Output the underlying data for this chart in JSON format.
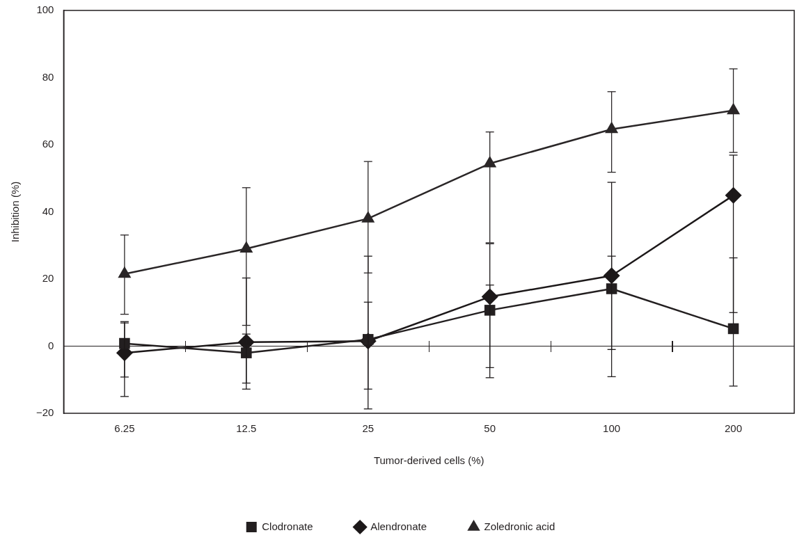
{
  "chart_data": {
    "type": "line",
    "xlabel": "Tumor-derived cells (%)",
    "ylabel": "Inhibition (%)",
    "categories": [
      "6.25",
      "12.5",
      "25",
      "50",
      "100",
      "200"
    ],
    "ylim": [
      -20,
      100
    ],
    "yticks": [
      {
        "value": -20,
        "label": "−20"
      },
      0,
      20,
      40,
      60,
      80,
      100
    ],
    "grid": false,
    "legend": "bottom",
    "line_style": "solid",
    "ref_lines": [
      {
        "axis": "y",
        "value": 0,
        "color": "#231f20"
      }
    ],
    "series": [
      {
        "name": "Clodronate",
        "color": "#231f20",
        "marker": "square",
        "values": [
          0.8,
          -2,
          2,
          10.7,
          17.1,
          5.2
        ],
        "errors": [
          [
            -9.2,
            6.9
          ],
          [
            -11,
            3.6
          ],
          [
            -12.8,
            13.1
          ],
          [
            -6.4,
            18.2
          ],
          [
            -9.1,
            26.8
          ],
          [
            -11.9,
            26.3
          ]
        ]
      },
      {
        "name": "Alendronate",
        "color": "#1c1819",
        "marker": "diamond",
        "values": [
          -2,
          1.2,
          1.5,
          14.7,
          21,
          44.9
        ],
        "errors": [
          [
            -15,
            7.3
          ],
          [
            -12.8,
            20.3
          ],
          [
            -18.7,
            26.8
          ],
          [
            -9.4,
            30.5
          ],
          [
            -1,
            48.8
          ],
          [
            10,
            56.9
          ]
        ]
      },
      {
        "name": "Zoledronic acid",
        "color": "#2a2627",
        "marker": "triangle",
        "values": [
          21.5,
          29,
          38,
          54.4,
          64.6,
          70.2
        ],
        "errors": [
          [
            9.5,
            33.1
          ],
          [
            6.2,
            47.2
          ],
          [
            21.8,
            55
          ],
          [
            30.8,
            63.8
          ],
          [
            51.8,
            75.8
          ],
          [
            57.7,
            82.6
          ]
        ]
      }
    ]
  }
}
